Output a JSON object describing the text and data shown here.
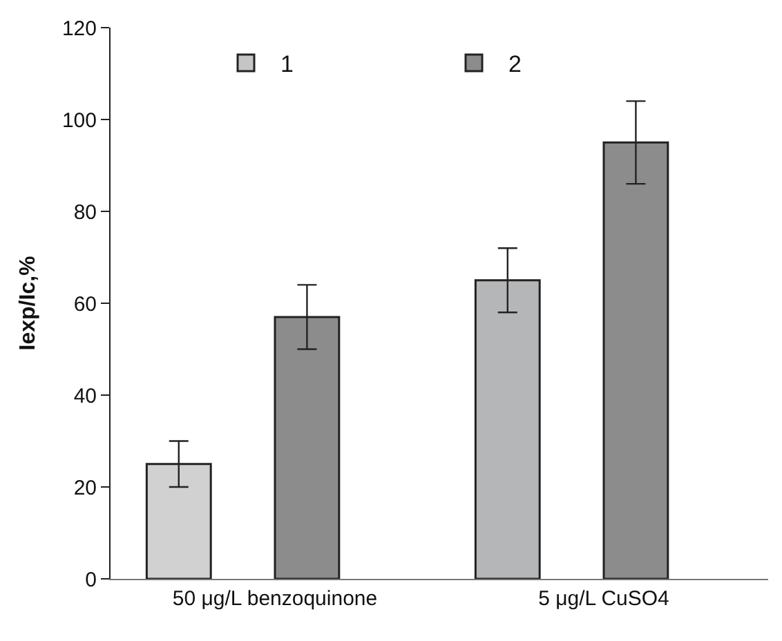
{
  "chart_data": {
    "type": "bar",
    "ylabel": "Iexp/Ic,%",
    "categories": [
      "50 μg/L benzoquinone",
      "5 μg/L CuSO4"
    ],
    "series": [
      {
        "name": "1",
        "color": "#c4c5c5",
        "colors": [
          "#d0d1d0",
          "#b5b6b8"
        ],
        "values": [
          25,
          65
        ],
        "errors": [
          [
            20,
            30
          ],
          [
            58,
            72
          ]
        ]
      },
      {
        "name": "2",
        "color": "#8c8c8c",
        "values": [
          57,
          95
        ],
        "errors": [
          [
            50,
            64
          ],
          [
            86,
            104
          ]
        ]
      }
    ],
    "ylim": [
      0,
      120
    ],
    "yticks": [
      0,
      20,
      40,
      60,
      80,
      100,
      120
    ],
    "legend": "top"
  }
}
